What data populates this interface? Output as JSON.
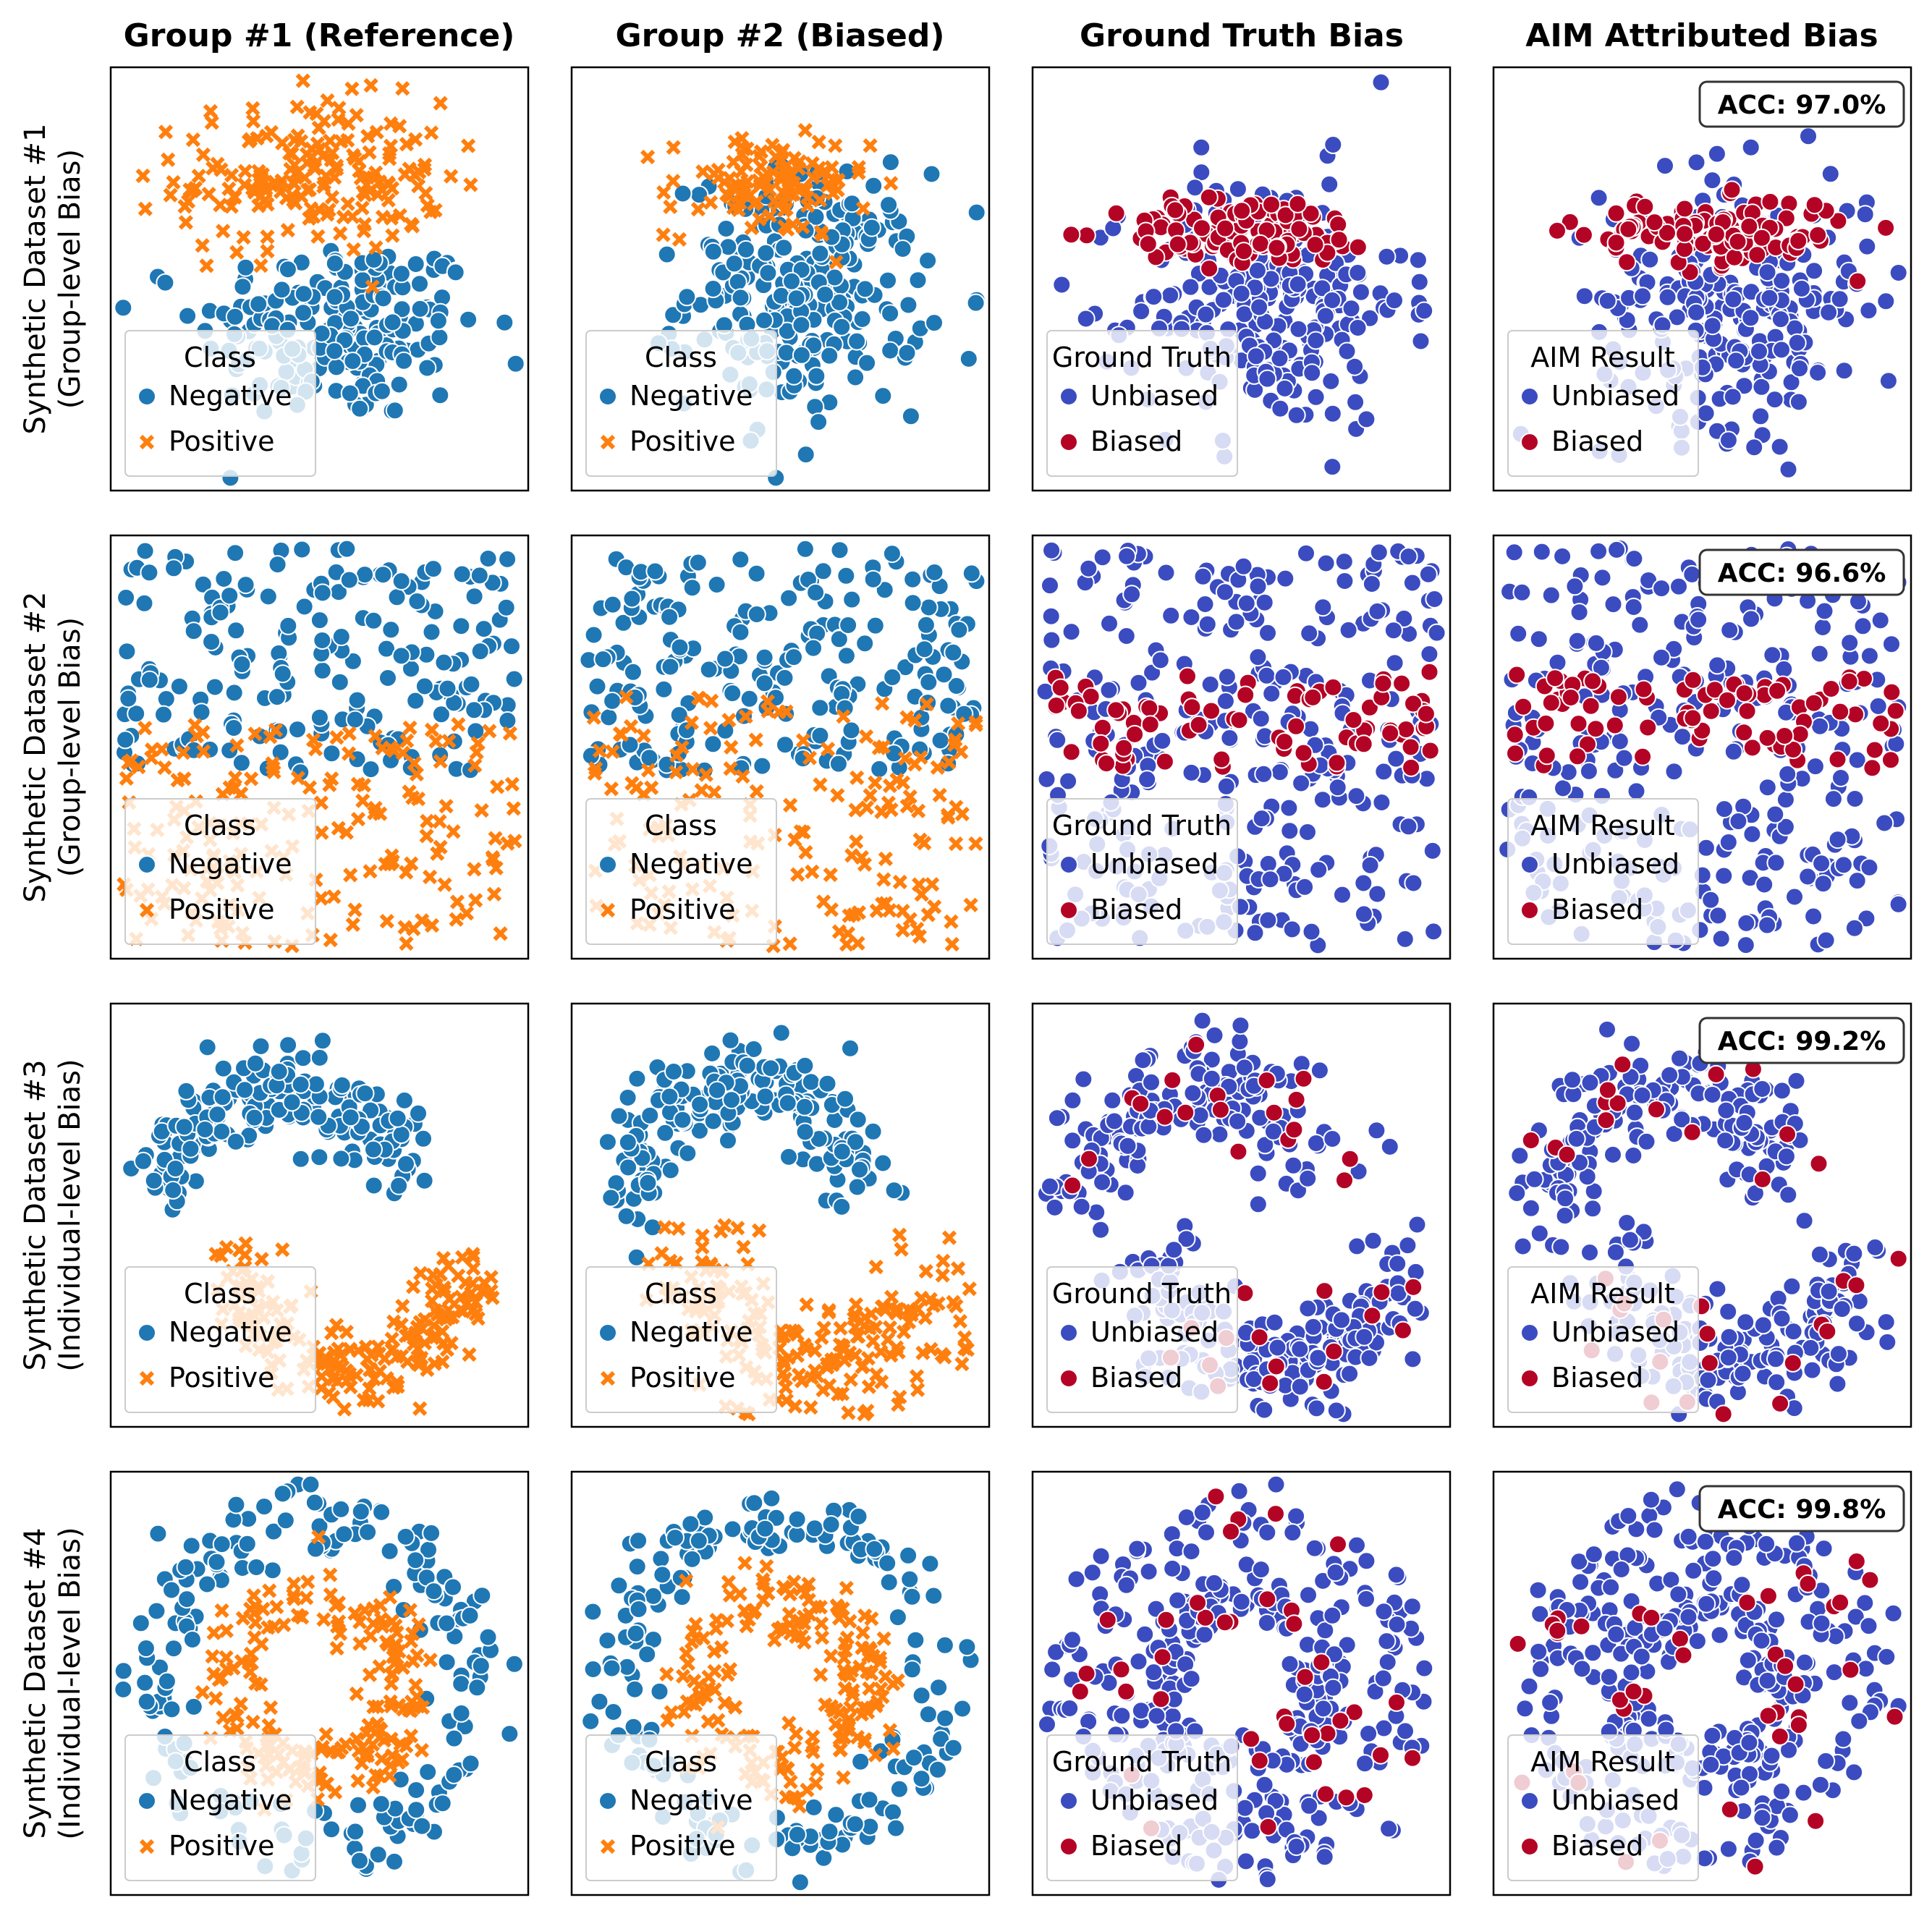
{
  "figure": {
    "column_titles": [
      "Group #1 (Reference)",
      "Group #2 (Biased)",
      "Ground Truth Bias",
      "AIM Attributed Bias"
    ],
    "row_labels": [
      [
        "Synthetic Dataset #1",
        "(Group-level Bias)"
      ],
      [
        "Synthetic Dataset #2",
        "(Group-level Bias)"
      ],
      [
        "Synthetic Dataset #3",
        "(Individual-level Bias)"
      ],
      [
        "Synthetic Dataset #4",
        "(Individual-level Bias)"
      ]
    ],
    "accuracy_badges": [
      "ACC: 97.0%",
      "ACC: 96.6%",
      "ACC: 99.2%",
      "ACC: 99.8%"
    ],
    "legends": {
      "class": {
        "title": "Class",
        "items": [
          "Negative",
          "Positive"
        ]
      },
      "ground_truth": {
        "title": "Ground Truth",
        "items": [
          "Unbiased",
          "Biased"
        ]
      },
      "aim": {
        "title": "AIM Result",
        "items": [
          "Unbiased",
          "Biased"
        ]
      }
    },
    "colors": {
      "negative": "#1f77b4",
      "positive": "#ff7f0e",
      "unbiased": "#3b4cc0",
      "biased": "#b40426"
    }
  },
  "chart_data": [
    {
      "type": "scatter",
      "dataset": 1,
      "column": "Group #1 (Reference)",
      "series": [
        {
          "name": "Negative",
          "n": 200,
          "shape": "blob",
          "cx": 0.55,
          "cy": 0.38,
          "sx": 0.17,
          "sy": 0.11
        },
        {
          "name": "Positive",
          "n": 190,
          "shape": "blob",
          "cx": 0.48,
          "cy": 0.74,
          "sx": 0.16,
          "sy": 0.09
        }
      ]
    },
    {
      "type": "scatter",
      "dataset": 1,
      "column": "Group #2 (Biased)",
      "series": [
        {
          "name": "Negative",
          "n": 260,
          "shape": "blob",
          "cx": 0.56,
          "cy": 0.47,
          "sx": 0.14,
          "sy": 0.14
        },
        {
          "name": "Positive",
          "n": 110,
          "shape": "blob",
          "cx": 0.47,
          "cy": 0.72,
          "sx": 0.12,
          "sy": 0.06
        }
      ]
    },
    {
      "type": "scatter",
      "dataset": 1,
      "column": "Ground Truth Bias",
      "series": [
        {
          "name": "Unbiased",
          "n": 250,
          "shape": "blob",
          "cx": 0.57,
          "cy": 0.45,
          "sx": 0.16,
          "sy": 0.15
        },
        {
          "name": "Biased",
          "n": 110,
          "shape": "blob",
          "cx": 0.52,
          "cy": 0.61,
          "sx": 0.16,
          "sy": 0.04
        }
      ]
    },
    {
      "type": "scatter",
      "dataset": 1,
      "column": "AIM Attributed Bias",
      "series": [
        {
          "name": "Unbiased",
          "n": 250,
          "shape": "blob",
          "cx": 0.58,
          "cy": 0.45,
          "sx": 0.16,
          "sy": 0.15
        },
        {
          "name": "Biased",
          "n": 110,
          "shape": "blob",
          "cx": 0.54,
          "cy": 0.61,
          "sx": 0.16,
          "sy": 0.04
        }
      ]
    },
    {
      "type": "scatter",
      "dataset": 2,
      "column": "Group #1 (Reference)",
      "series": [
        {
          "name": "Negative",
          "n": 190,
          "shape": "uniform",
          "x0": 0.03,
          "x1": 0.97,
          "y0": 0.44,
          "y1": 0.97
        },
        {
          "name": "Positive",
          "n": 190,
          "shape": "uniform",
          "x0": 0.03,
          "x1": 0.97,
          "y0": 0.03,
          "y1": 0.56
        }
      ]
    },
    {
      "type": "scatter",
      "dataset": 2,
      "column": "Group #2 (Biased)",
      "series": [
        {
          "name": "Negative",
          "n": 210,
          "shape": "uniform",
          "x0": 0.03,
          "x1": 0.97,
          "y0": 0.44,
          "y1": 0.97
        },
        {
          "name": "Positive",
          "n": 170,
          "shape": "uniform",
          "x0": 0.05,
          "x1": 0.97,
          "y0": 0.03,
          "y1": 0.62
        }
      ]
    },
    {
      "type": "scatter",
      "dataset": 2,
      "column": "Ground Truth Bias",
      "series": [
        {
          "name": "Unbiased",
          "n": 300,
          "shape": "uniform",
          "x0": 0.03,
          "x1": 0.97,
          "y0": 0.03,
          "y1": 0.97
        },
        {
          "name": "Biased",
          "n": 80,
          "shape": "uniform",
          "x0": 0.03,
          "x1": 0.97,
          "y0": 0.45,
          "y1": 0.68
        }
      ]
    },
    {
      "type": "scatter",
      "dataset": 2,
      "column": "AIM Attributed Bias",
      "series": [
        {
          "name": "Unbiased",
          "n": 300,
          "shape": "uniform",
          "x0": 0.03,
          "x1": 0.97,
          "y0": 0.03,
          "y1": 0.97
        },
        {
          "name": "Biased",
          "n": 80,
          "shape": "uniform",
          "x0": 0.03,
          "x1": 0.97,
          "y0": 0.45,
          "y1": 0.68
        }
      ]
    },
    {
      "type": "scatter",
      "dataset": 3,
      "column": "Group #1 (Reference)",
      "series": [
        {
          "name": "Negative",
          "n": 190,
          "shape": "arc",
          "cx": 0.42,
          "cy": 0.52,
          "r": 0.28,
          "a0": 15,
          "a1": 180,
          "noise": 0.05
        },
        {
          "name": "Positive",
          "n": 200,
          "shape": "arc",
          "cx": 0.58,
          "cy": 0.42,
          "r": 0.28,
          "a0": 180,
          "a1": 350,
          "noise": 0.05
        }
      ]
    },
    {
      "type": "scatter",
      "dataset": 3,
      "column": "Group #2 (Biased)",
      "series": [
        {
          "name": "Negative",
          "n": 180,
          "shape": "arc",
          "cx": 0.42,
          "cy": 0.52,
          "r": 0.28,
          "a0": 15,
          "a1": 180,
          "noise": 0.05
        },
        {
          "name": "Positive",
          "n": 200,
          "shape": "arc",
          "cx": 0.58,
          "cy": 0.42,
          "r": 0.28,
          "a0": 180,
          "a1": 350,
          "noise": 0.07
        }
      ]
    },
    {
      "type": "scatter",
      "dataset": 3,
      "column": "Ground Truth Bias",
      "series": [
        {
          "name": "Unbiased",
          "n": 340,
          "shape": "moons",
          "noise": 0.06
        },
        {
          "name": "Biased",
          "n": 35,
          "shape": "moons",
          "noise": 0.06
        }
      ]
    },
    {
      "type": "scatter",
      "dataset": 3,
      "column": "AIM Attributed Bias",
      "series": [
        {
          "name": "Unbiased",
          "n": 340,
          "shape": "moons",
          "noise": 0.06
        },
        {
          "name": "Biased",
          "n": 35,
          "shape": "moons",
          "noise": 0.06
        }
      ]
    },
    {
      "type": "scatter",
      "dataset": 4,
      "column": "Group #1 (Reference)",
      "series": [
        {
          "name": "Negative",
          "n": 190,
          "shape": "ring",
          "cx": 0.5,
          "cy": 0.5,
          "r": 0.38,
          "noise": 0.045
        },
        {
          "name": "Positive",
          "n": 190,
          "shape": "ring",
          "cx": 0.5,
          "cy": 0.5,
          "r": 0.2,
          "noise": 0.045
        }
      ]
    },
    {
      "type": "scatter",
      "dataset": 4,
      "column": "Group #2 (Biased)",
      "series": [
        {
          "name": "Negative",
          "n": 190,
          "shape": "ring",
          "cx": 0.5,
          "cy": 0.5,
          "r": 0.38,
          "noise": 0.04
        },
        {
          "name": "Positive",
          "n": 190,
          "shape": "ring",
          "cx": 0.5,
          "cy": 0.5,
          "r": 0.2,
          "noise": 0.05
        }
      ]
    },
    {
      "type": "scatter",
      "dataset": 4,
      "column": "Ground Truth Bias",
      "series": [
        {
          "name": "Unbiased",
          "n": 340,
          "shape": "rings",
          "noise": 0.045
        },
        {
          "name": "Biased",
          "n": 40,
          "shape": "rings",
          "noise": 0.045
        }
      ]
    },
    {
      "type": "scatter",
      "dataset": 4,
      "column": "AIM Attributed Bias",
      "series": [
        {
          "name": "Unbiased",
          "n": 340,
          "shape": "rings",
          "noise": 0.045
        },
        {
          "name": "Biased",
          "n": 40,
          "shape": "rings",
          "noise": 0.045
        }
      ]
    }
  ]
}
